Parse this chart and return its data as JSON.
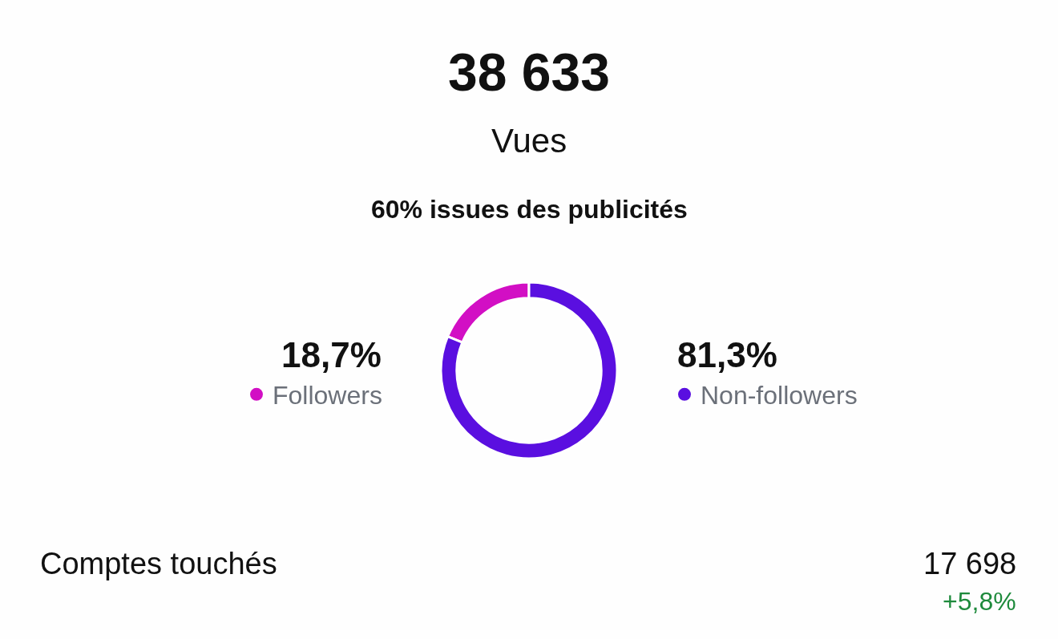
{
  "chart_data": {
    "type": "donut",
    "title": "38 633",
    "subtitle": "Vues",
    "categories": [
      "Followers",
      "Non-followers"
    ],
    "values": [
      18.7,
      81.3
    ],
    "value_labels": [
      "18,7%",
      "81,3%"
    ],
    "colors": [
      "#d20fc4",
      "#5a0fe0"
    ],
    "legend": "right",
    "annotations": [
      "60% issues des publicités",
      "Comptes touchés",
      "17 698",
      "+5,8%"
    ]
  }
}
